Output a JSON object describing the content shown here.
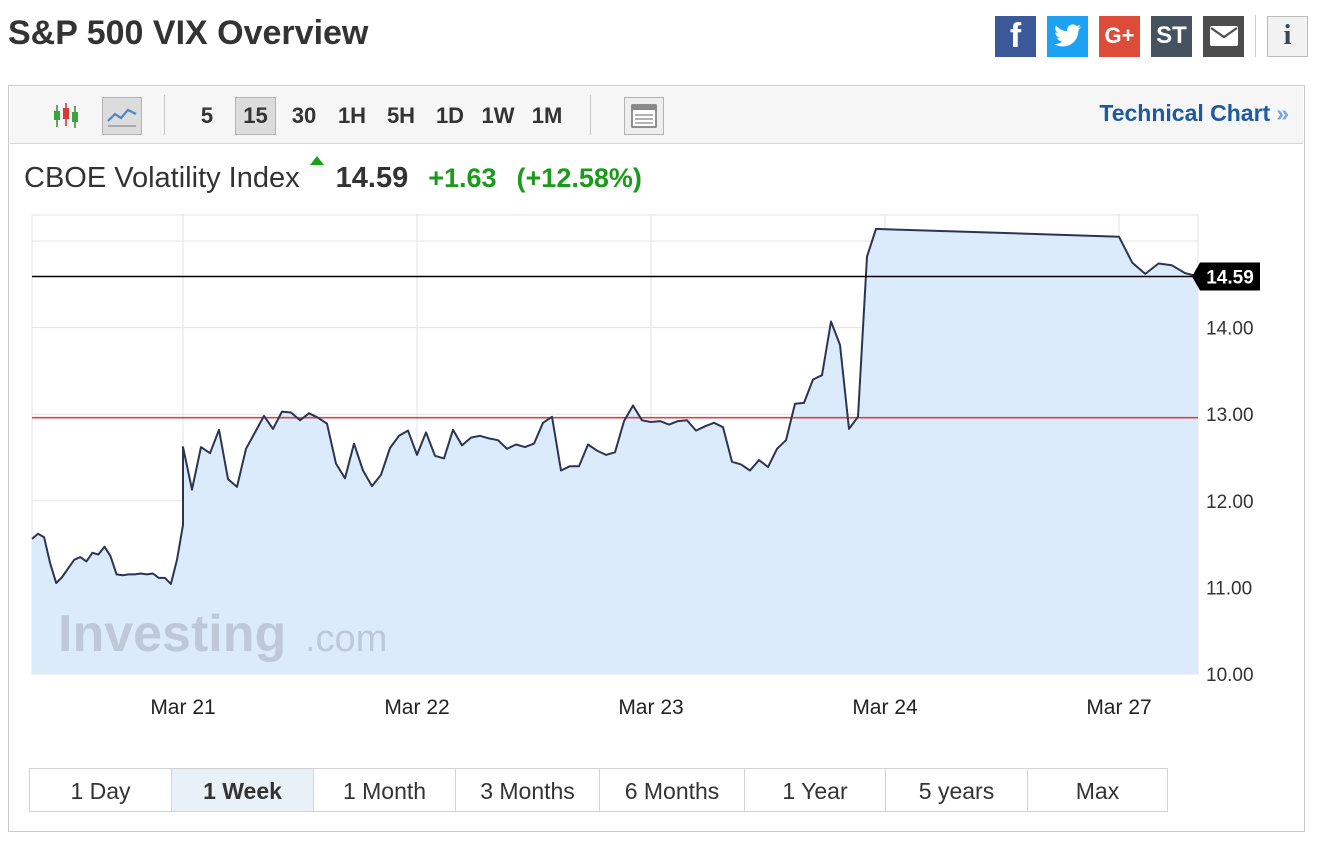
{
  "page": {
    "title": "S&P 500 VIX Overview"
  },
  "share": {
    "facebook_glyph": "f",
    "googleplus_glyph": "G+",
    "stocktwits_glyph": "ST",
    "info_glyph": "i"
  },
  "toolbar": {
    "timeframes": [
      "5",
      "15",
      "30",
      "1H",
      "5H",
      "1D",
      "1W",
      "1M"
    ],
    "active_timeframe": "15",
    "technical_chart_label": "Technical Chart",
    "technical_chart_arrow": "»"
  },
  "quote": {
    "name": "CBOE Volatility Index",
    "last": "14.59",
    "change": "+1.63",
    "change_pct": "(+12.58%)",
    "direction": "up"
  },
  "watermark": {
    "brand": "Investing",
    "suffix": ".com"
  },
  "colors": {
    "line": "#2b3552",
    "area_fill": "#dcebfb",
    "up_green": "#1b9a1b",
    "reference_line": "#d64545",
    "last_price_line": "#000000",
    "grid": "#e3e3e3"
  },
  "range_buttons": [
    "1 Day",
    "1 Week",
    "1 Month",
    "3 Months",
    "6 Months",
    "1 Year",
    "5 years",
    "Max"
  ],
  "active_range": "1 Week",
  "chart_data": {
    "type": "area",
    "title": "",
    "xlabel": "",
    "ylabel": "",
    "ylim": [
      10.0,
      15.3
    ],
    "yticks": [
      "10.00",
      "11.00",
      "12.00",
      "13.00",
      "14.00"
    ],
    "xticks": [
      "Mar 21",
      "Mar 22",
      "Mar 23",
      "Mar 24",
      "Mar 27"
    ],
    "grid": true,
    "last_price": 14.59,
    "last_price_label": "14.59",
    "reference_level": 12.96,
    "points_per_day": 26,
    "series": [
      {
        "values": [
          11.56,
          11.62,
          11.58,
          11.28,
          11.05,
          11.12,
          11.22,
          11.32,
          11.35,
          11.3,
          11.4,
          11.38,
          11.47,
          11.36,
          11.15,
          11.14,
          11.15,
          11.15,
          11.16,
          11.15,
          11.16,
          11.11,
          11.11,
          11.04,
          11.32,
          11.72,
          12.62,
          12.13,
          12.62,
          12.55,
          12.82,
          12.25,
          12.16,
          12.6,
          12.79,
          12.98,
          12.83,
          13.03,
          13.02,
          12.93,
          13.01,
          12.96,
          12.89,
          12.43,
          12.26,
          12.66,
          12.35,
          12.17,
          12.3,
          12.61,
          12.75,
          12.81,
          12.53,
          12.79,
          12.52,
          12.49,
          12.82,
          12.64,
          12.73,
          12.75,
          12.72,
          12.7,
          12.6,
          12.65,
          12.62,
          12.66,
          12.9,
          12.97,
          12.35,
          12.4,
          12.4,
          12.65,
          12.58,
          12.53,
          12.56,
          12.92,
          13.1,
          12.93,
          12.91,
          12.92,
          12.88,
          12.92,
          12.93,
          12.81,
          12.86,
          12.9,
          12.85,
          12.45,
          12.42,
          12.35,
          12.47,
          12.39,
          12.6,
          12.7,
          13.12,
          13.13,
          13.4,
          13.45,
          14.07,
          13.8,
          12.83,
          12.97,
          14.82,
          15.14,
          15.05,
          14.75,
          14.62,
          14.74,
          14.72,
          14.63,
          14.59
        ]
      }
    ]
  }
}
